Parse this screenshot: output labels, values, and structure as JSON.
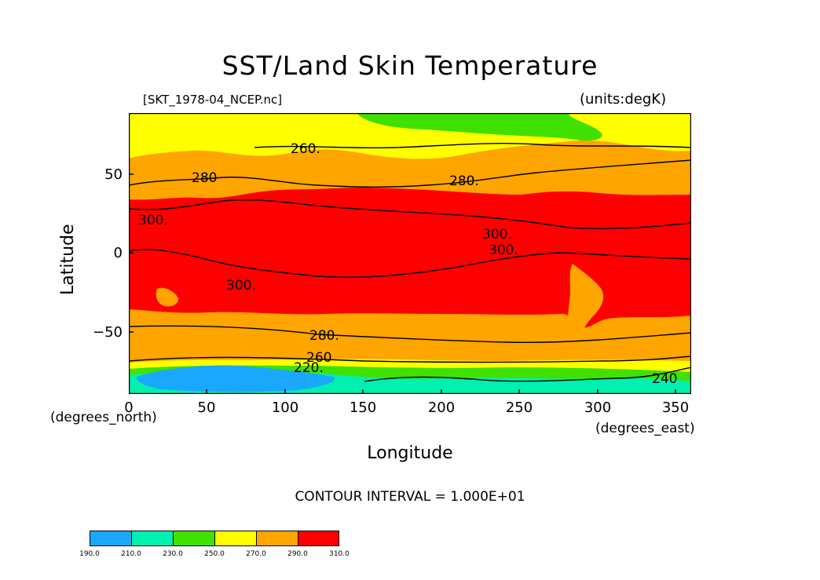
{
  "title": "SST/Land Skin Temperature",
  "subtitle_left": "[SKT_1978-04_NCEP.nc]",
  "subtitle_right": "(units:degK)",
  "ylabel": "Latitude",
  "xlabel": "Longitude",
  "x_units": "(degrees_east)",
  "y_units": "(degrees_north)",
  "contour_note": "CONTOUR INTERVAL = 1.000E+01",
  "yticks": [
    "50",
    "0",
    "−50"
  ],
  "xticks": [
    "0",
    "50",
    "100",
    "150",
    "200",
    "250",
    "300",
    "350"
  ],
  "contour_labels": [
    "260.",
    "280",
    "280.",
    "300.",
    "300.",
    "300.",
    "300.",
    "280.",
    "260",
    "220.",
    "240"
  ],
  "colorbar": {
    "ticks": [
      "190.0",
      "210.0",
      "230.0",
      "250.0",
      "270.0",
      "290.0",
      "310.0"
    ],
    "colors": [
      "#1aa8ff",
      "#00f0b0",
      "#40e000",
      "#ffff00",
      "#ffa500",
      "#ff0000"
    ]
  },
  "colors": {
    "band_cold": "#1aa8ff",
    "band_teal": "#00f0b0",
    "band_green": "#40e000",
    "band_yellow": "#ffff00",
    "band_orange": "#ffa500",
    "band_red": "#ff0000"
  }
}
